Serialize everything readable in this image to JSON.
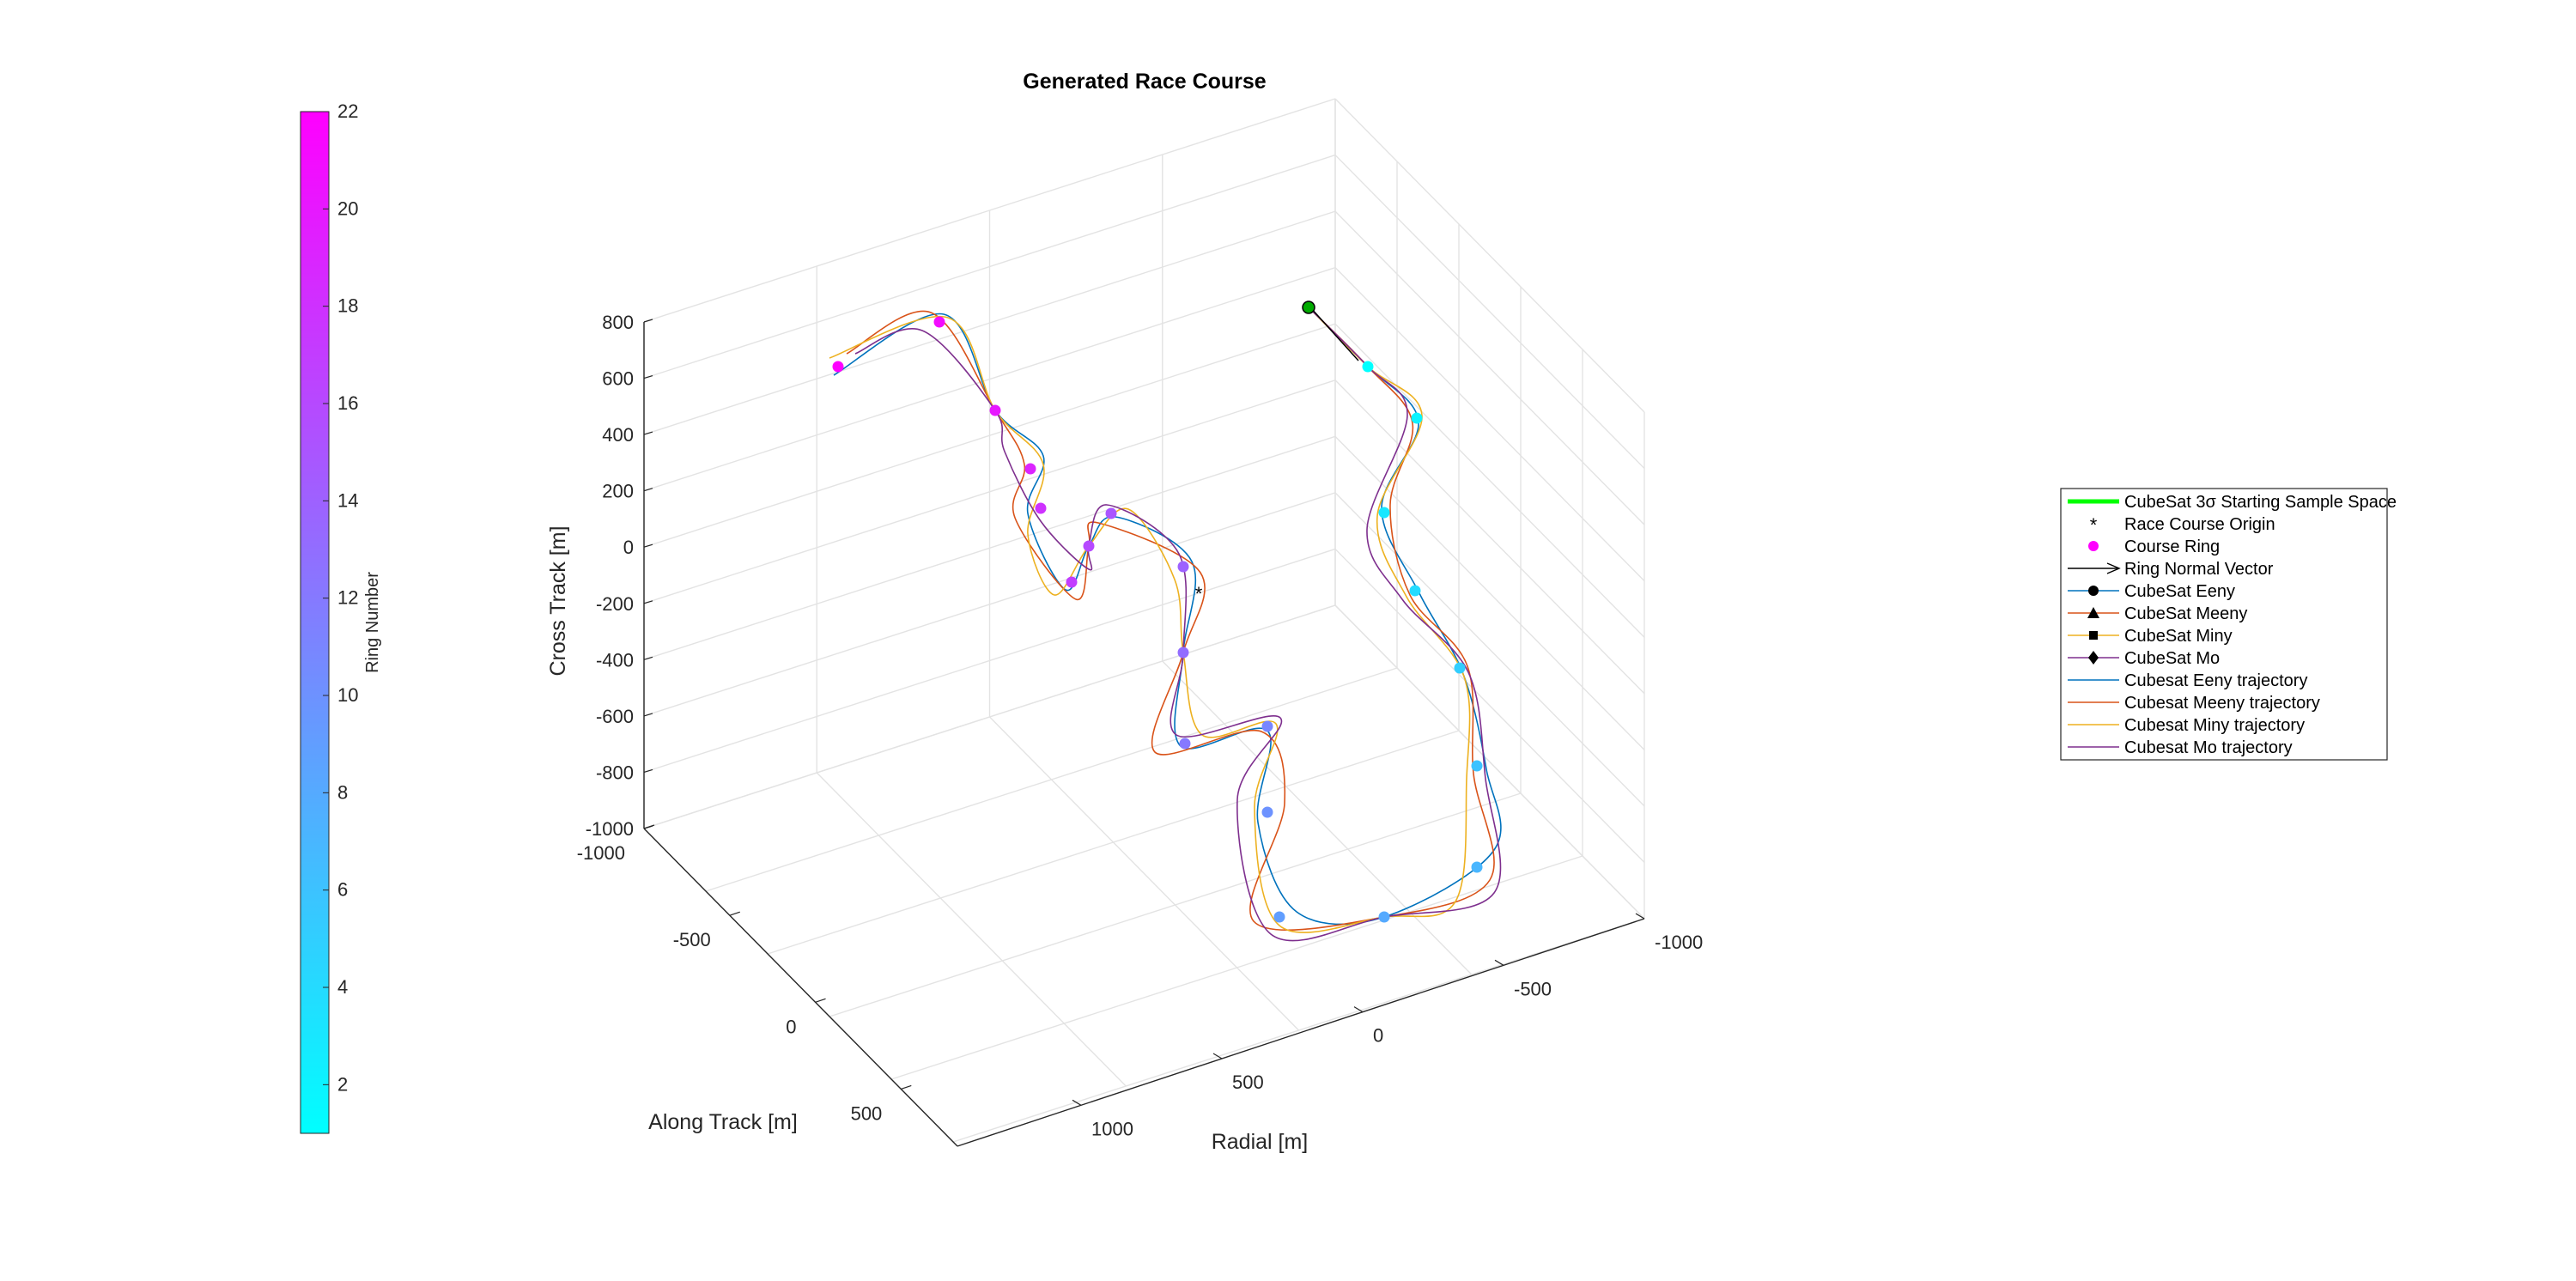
{
  "chart_data": {
    "type": "line",
    "title": "Generated Race Course",
    "axes": {
      "radial": {
        "label": "Radial [m]",
        "ticks": [
          "-1000",
          "-500",
          "0",
          "500",
          "1000"
        ]
      },
      "along": {
        "label": "Along Track [m]",
        "ticks": [
          "-1000",
          "-500",
          "0",
          "500"
        ]
      },
      "cross": {
        "label": "Cross Track [m]",
        "ticks": [
          "800",
          "600",
          "400",
          "200",
          "0",
          "-200",
          "-400",
          "-600",
          "-800",
          "-1000"
        ]
      }
    },
    "colorbar": {
      "label": "Ring Number",
      "ticks": [
        "22",
        "20",
        "18",
        "16",
        "14",
        "12",
        "10",
        "8",
        "6",
        "4",
        "2"
      ],
      "range": [
        1,
        22
      ],
      "colormap": [
        "#00ffff",
        "#ff00ff"
      ]
    },
    "legend": {
      "position": "right",
      "entries": [
        {
          "label": "CubeSat 3σ Starting Sample Space",
          "color": "#00ff00"
        },
        {
          "label": "Race Course Origin",
          "color": "#000000"
        },
        {
          "label": "Course Ring",
          "color": "#ff00ff"
        },
        {
          "label": "Ring Normal Vector",
          "color": "#000000"
        },
        {
          "label": "CubeSat Eeny",
          "color": "#0072bd"
        },
        {
          "label": "CubeSat Meeny",
          "color": "#d95319"
        },
        {
          "label": "CubeSat Miny",
          "color": "#edb120"
        },
        {
          "label": "CubeSat Mo",
          "color": "#7e2f8e"
        },
        {
          "label": "Cubesat Eeny trajectory",
          "color": "#0072bd"
        },
        {
          "label": "Cubesat Meeny trajectory",
          "color": "#d95319"
        },
        {
          "label": "Cubesat Miny trajectory",
          "color": "#edb120"
        },
        {
          "label": "Cubesat Mo trajectory",
          "color": "#7e2f8e"
        }
      ]
    },
    "rings": [
      1,
      2,
      3,
      4,
      5,
      6,
      7,
      8,
      9,
      10,
      11,
      12,
      13,
      14,
      15,
      16,
      17,
      18,
      19,
      20,
      21,
      22
    ],
    "series": [
      {
        "name": "Cubesat Eeny trajectory",
        "color": "#0072bd"
      },
      {
        "name": "Cubesat Meeny trajectory",
        "color": "#d95319"
      },
      {
        "name": "Cubesat Miny trajectory",
        "color": "#edb120"
      },
      {
        "name": "Cubesat Mo trajectory",
        "color": "#7e2f8e"
      }
    ]
  }
}
